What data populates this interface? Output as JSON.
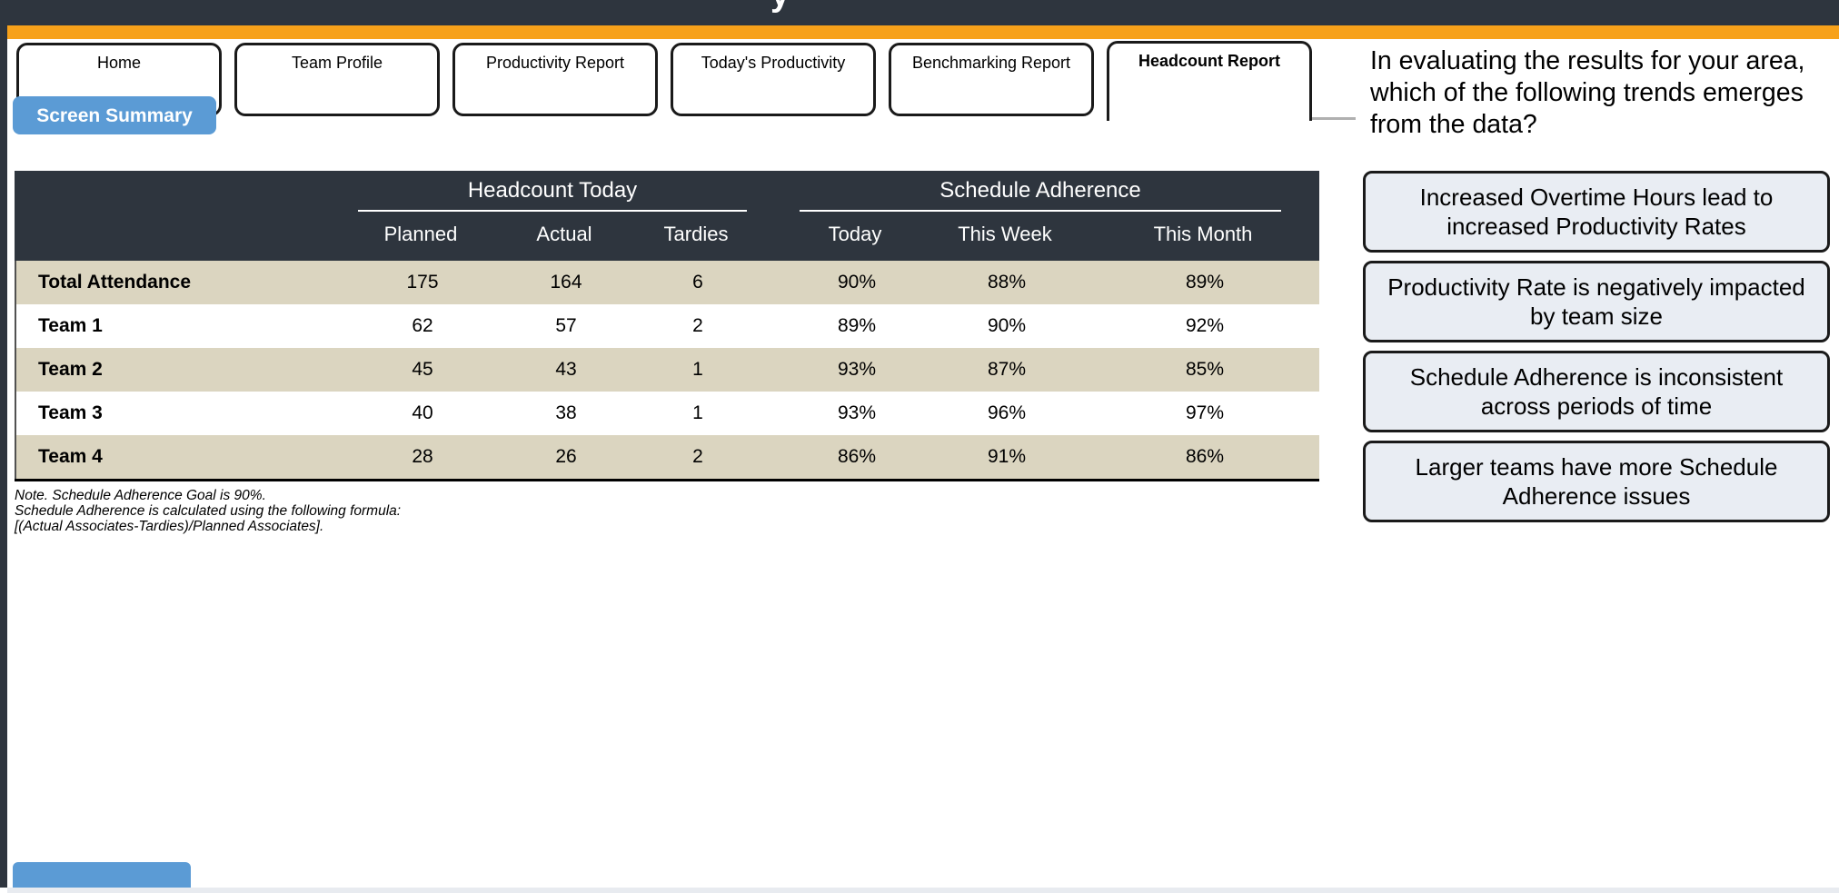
{
  "header": {
    "partial_title_glyph": "y"
  },
  "tabs": {
    "items": [
      {
        "label": "Home",
        "active": false
      },
      {
        "label": "Team Profile",
        "active": false
      },
      {
        "label": "Productivity Report",
        "active": false
      },
      {
        "label": "Today's Productivity",
        "active": false
      },
      {
        "label": "Benchmarking Report",
        "active": false
      },
      {
        "label": "Headcount Report",
        "active": true
      }
    ]
  },
  "buttons": {
    "screen_summary": "Screen Summary"
  },
  "table": {
    "group_headers": [
      "Headcount Today",
      "Schedule Adherence"
    ],
    "columns": [
      "Planned",
      "Actual",
      "Tardies",
      "Today",
      "This Week",
      "This Month"
    ],
    "rows": [
      {
        "label": "Total Attendance",
        "values": [
          "175",
          "164",
          "6",
          "90%",
          "88%",
          "89%"
        ]
      },
      {
        "label": "Team 1",
        "values": [
          "62",
          "57",
          "2",
          "89%",
          "90%",
          "92%"
        ]
      },
      {
        "label": "Team 2",
        "values": [
          "45",
          "43",
          "1",
          "93%",
          "87%",
          "85%"
        ]
      },
      {
        "label": "Team 3",
        "values": [
          "40",
          "38",
          "1",
          "93%",
          "96%",
          "97%"
        ]
      },
      {
        "label": "Team 4",
        "values": [
          "28",
          "26",
          "2",
          "86%",
          "91%",
          "86%"
        ]
      }
    ],
    "notes": [
      "Note. Schedule Adherence Goal is 90%.",
      "Schedule Adherence is calculated using the following formula:",
      "[(Actual Associates-Tardies)/Planned Associates]."
    ]
  },
  "question": {
    "text": "In evaluating the results for your area, which of the following trends emerges from the data?"
  },
  "options": {
    "items": [
      "Increased Overtime Hours lead to increased Productivity Rates",
      "Productivity Rate is negatively impacted by team size",
      "Schedule Adherence is inconsistent across periods of time",
      "Larger teams have more Schedule Adherence issues"
    ]
  },
  "colors": {
    "accent_orange": "#F7A11A",
    "button_blue": "#5B9BD5",
    "header_dark": "#2E353E",
    "row_beige": "#DBD5C0",
    "option_bg": "#E9EDF3"
  }
}
